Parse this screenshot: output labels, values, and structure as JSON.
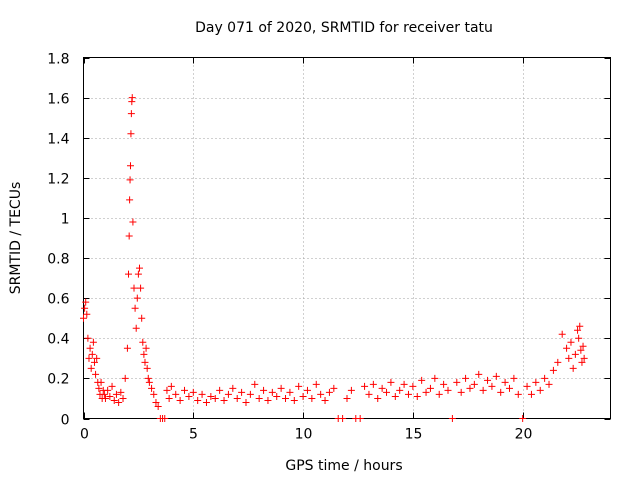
{
  "chart_data": {
    "type": "scatter",
    "title": "Day 071 of 2020, SRMTID for receiver tatu",
    "xlabel": "GPS time / hours",
    "ylabel": "SRMTID / TECUs",
    "xlim": [
      0,
      24
    ],
    "ylim": [
      0,
      1.8
    ],
    "xticks": [
      0,
      5,
      10,
      15,
      20
    ],
    "xtick_labels": [
      "0",
      "5",
      "10",
      "15",
      "20"
    ],
    "yticks": [
      0,
      0.2,
      0.4,
      0.6,
      0.8,
      1.0,
      1.2,
      1.4,
      1.6,
      1.8
    ],
    "ytick_labels": [
      "0",
      "0.2",
      "0.4",
      "0.6",
      "0.8",
      "1",
      "1.2",
      "1.4",
      "1.6",
      "1.8"
    ],
    "grid": true,
    "marker": "+",
    "color": "#ff0000",
    "series": [
      {
        "name": "tatu",
        "points": [
          [
            0.0,
            0.5
          ],
          [
            0.05,
            0.55
          ],
          [
            0.1,
            0.58
          ],
          [
            0.15,
            0.52
          ],
          [
            0.2,
            0.4
          ],
          [
            0.25,
            0.3
          ],
          [
            0.3,
            0.35
          ],
          [
            0.35,
            0.25
          ],
          [
            0.4,
            0.32
          ],
          [
            0.45,
            0.38
          ],
          [
            0.5,
            0.28
          ],
          [
            0.55,
            0.22
          ],
          [
            0.6,
            0.3
          ],
          [
            0.65,
            0.18
          ],
          [
            0.7,
            0.15
          ],
          [
            0.75,
            0.12
          ],
          [
            0.8,
            0.18
          ],
          [
            0.85,
            0.1
          ],
          [
            0.9,
            0.14
          ],
          [
            0.95,
            0.12
          ],
          [
            1.0,
            0.1
          ],
          [
            1.1,
            0.14
          ],
          [
            1.2,
            0.11
          ],
          [
            1.3,
            0.16
          ],
          [
            1.4,
            0.09
          ],
          [
            1.5,
            0.12
          ],
          [
            1.6,
            0.08
          ],
          [
            1.7,
            0.13
          ],
          [
            1.8,
            0.1
          ],
          [
            1.9,
            0.2
          ],
          [
            2.0,
            0.35
          ],
          [
            2.05,
            0.72
          ],
          [
            2.08,
            0.91
          ],
          [
            2.1,
            1.09
          ],
          [
            2.12,
            1.19
          ],
          [
            2.14,
            1.26
          ],
          [
            2.16,
            1.42
          ],
          [
            2.18,
            1.52
          ],
          [
            2.2,
            1.58
          ],
          [
            2.22,
            1.6
          ],
          [
            2.25,
            0.98
          ],
          [
            2.3,
            0.65
          ],
          [
            2.35,
            0.55
          ],
          [
            2.4,
            0.45
          ],
          [
            2.45,
            0.6
          ],
          [
            2.5,
            0.72
          ],
          [
            2.55,
            0.75
          ],
          [
            2.6,
            0.65
          ],
          [
            2.65,
            0.5
          ],
          [
            2.7,
            0.38
          ],
          [
            2.75,
            0.32
          ],
          [
            2.8,
            0.28
          ],
          [
            2.85,
            0.35
          ],
          [
            2.9,
            0.25
          ],
          [
            2.95,
            0.2
          ],
          [
            3.0,
            0.18
          ],
          [
            3.1,
            0.15
          ],
          [
            3.2,
            0.12
          ],
          [
            3.3,
            0.08
          ],
          [
            3.4,
            0.06
          ],
          [
            3.5,
            0.0
          ],
          [
            3.6,
            0.0
          ],
          [
            3.7,
            0.0
          ],
          [
            3.8,
            0.14
          ],
          [
            3.9,
            0.1
          ],
          [
            4.0,
            0.16
          ],
          [
            4.2,
            0.12
          ],
          [
            4.4,
            0.09
          ],
          [
            4.6,
            0.14
          ],
          [
            4.8,
            0.11
          ],
          [
            5.0,
            0.13
          ],
          [
            5.2,
            0.09
          ],
          [
            5.4,
            0.12
          ],
          [
            5.6,
            0.08
          ],
          [
            5.8,
            0.11
          ],
          [
            6.0,
            0.1
          ],
          [
            6.2,
            0.14
          ],
          [
            6.4,
            0.09
          ],
          [
            6.6,
            0.12
          ],
          [
            6.8,
            0.15
          ],
          [
            7.0,
            0.1
          ],
          [
            7.2,
            0.13
          ],
          [
            7.4,
            0.08
          ],
          [
            7.6,
            0.12
          ],
          [
            7.8,
            0.17
          ],
          [
            8.0,
            0.1
          ],
          [
            8.2,
            0.14
          ],
          [
            8.4,
            0.09
          ],
          [
            8.6,
            0.13
          ],
          [
            8.8,
            0.11
          ],
          [
            9.0,
            0.15
          ],
          [
            9.2,
            0.1
          ],
          [
            9.4,
            0.13
          ],
          [
            9.6,
            0.09
          ],
          [
            9.8,
            0.16
          ],
          [
            10.0,
            0.11
          ],
          [
            10.2,
            0.14
          ],
          [
            10.4,
            0.1
          ],
          [
            10.6,
            0.17
          ],
          [
            10.8,
            0.12
          ],
          [
            11.0,
            0.09
          ],
          [
            11.2,
            0.13
          ],
          [
            11.4,
            0.15
          ],
          [
            11.6,
            0.0
          ],
          [
            11.8,
            0.0
          ],
          [
            12.0,
            0.1
          ],
          [
            12.2,
            0.14
          ],
          [
            12.4,
            0.0
          ],
          [
            12.6,
            0.0
          ],
          [
            12.8,
            0.16
          ],
          [
            13.0,
            0.12
          ],
          [
            13.2,
            0.17
          ],
          [
            13.4,
            0.1
          ],
          [
            13.6,
            0.15
          ],
          [
            13.8,
            0.13
          ],
          [
            14.0,
            0.18
          ],
          [
            14.2,
            0.11
          ],
          [
            14.4,
            0.14
          ],
          [
            14.6,
            0.17
          ],
          [
            14.8,
            0.12
          ],
          [
            15.0,
            0.16
          ],
          [
            15.2,
            0.11
          ],
          [
            15.4,
            0.19
          ],
          [
            15.6,
            0.13
          ],
          [
            15.8,
            0.15
          ],
          [
            16.0,
            0.2
          ],
          [
            16.2,
            0.12
          ],
          [
            16.4,
            0.17
          ],
          [
            16.6,
            0.14
          ],
          [
            16.8,
            0.0
          ],
          [
            17.0,
            0.18
          ],
          [
            17.2,
            0.13
          ],
          [
            17.4,
            0.2
          ],
          [
            17.6,
            0.15
          ],
          [
            17.8,
            0.17
          ],
          [
            18.0,
            0.22
          ],
          [
            18.2,
            0.14
          ],
          [
            18.4,
            0.19
          ],
          [
            18.6,
            0.16
          ],
          [
            18.8,
            0.21
          ],
          [
            19.0,
            0.13
          ],
          [
            19.2,
            0.18
          ],
          [
            19.4,
            0.15
          ],
          [
            19.6,
            0.2
          ],
          [
            19.8,
            0.12
          ],
          [
            20.0,
            0.0
          ],
          [
            20.2,
            0.16
          ],
          [
            20.4,
            0.12
          ],
          [
            20.6,
            0.18
          ],
          [
            20.8,
            0.14
          ],
          [
            21.0,
            0.2
          ],
          [
            21.2,
            0.17
          ],
          [
            21.4,
            0.24
          ],
          [
            21.6,
            0.28
          ],
          [
            21.8,
            0.42
          ],
          [
            22.0,
            0.35
          ],
          [
            22.1,
            0.3
          ],
          [
            22.2,
            0.38
          ],
          [
            22.3,
            0.25
          ],
          [
            22.4,
            0.32
          ],
          [
            22.5,
            0.44
          ],
          [
            22.55,
            0.4
          ],
          [
            22.6,
            0.46
          ],
          [
            22.65,
            0.34
          ],
          [
            22.7,
            0.28
          ],
          [
            22.75,
            0.36
          ],
          [
            22.8,
            0.3
          ]
        ]
      }
    ]
  }
}
